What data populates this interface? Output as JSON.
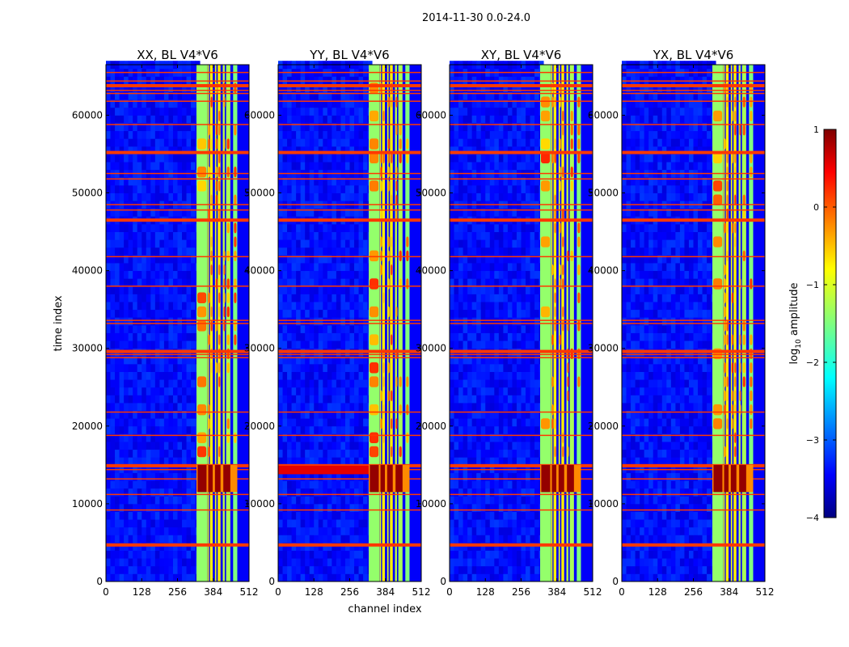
{
  "chart_data": {
    "type": "heatmap",
    "suptitle": "2014-11-30 0.0-24.0",
    "xlabel": "channel index",
    "ylabel": "time index",
    "xlim": [
      0,
      512
    ],
    "ylim": [
      0,
      66500
    ],
    "xticks": [
      0,
      128,
      256,
      384,
      512
    ],
    "yticks": [
      0,
      10000,
      20000,
      30000,
      40000,
      50000,
      60000
    ],
    "panels": [
      {
        "title": "XX, BL V4*V6",
        "pol": "XX"
      },
      {
        "title": "YY, BL V4*V6",
        "pol": "YY"
      },
      {
        "title": "XY, BL V4*V6",
        "pol": "XY"
      },
      {
        "title": "YX, BL V4*V6",
        "pol": "YX"
      }
    ],
    "colorbar": {
      "label": "log10 amplitude",
      "label_base": "log",
      "label_sub": "10",
      "label_rest": " amplitude",
      "vmin": -4,
      "vmax": 1,
      "ticks": [
        1,
        0,
        -1,
        -2,
        -3,
        -4
      ],
      "tick_labels": [
        "1",
        "0",
        "−1",
        "−2",
        "−3",
        "−4"
      ]
    },
    "features": {
      "bright_bands_channels": [
        [
          324,
          362
        ],
        [
          363,
          368
        ],
        [
          372,
          382
        ],
        [
          390,
          395
        ],
        [
          400,
          410
        ],
        [
          418,
          425
        ],
        [
          430,
          445
        ],
        [
          455,
          470
        ]
      ],
      "flagged_rows_time": [
        4700,
        9200,
        11200,
        13200,
        14400,
        14900,
        18800,
        21800,
        28800,
        29200,
        29600,
        33200,
        33600,
        38000,
        41800,
        46500,
        47800,
        48500,
        51800,
        52500,
        55200,
        58800,
        61800,
        62800,
        63200,
        63800,
        64400,
        65500
      ],
      "rfi_event_time": [
        11500,
        15000
      ]
    }
  }
}
